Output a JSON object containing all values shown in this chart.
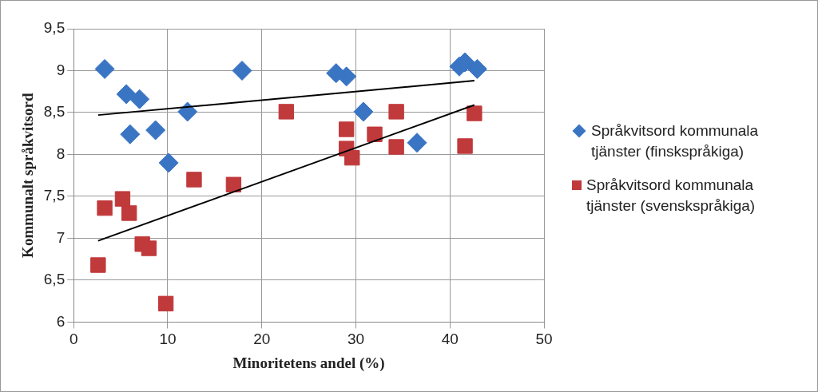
{
  "chart_data": {
    "type": "scatter",
    "xlabel": "Minoritetens andel (%)",
    "ylabel": "Kommunalt språkvitsord",
    "xlim": [
      0,
      50
    ],
    "xticks": [
      0,
      10,
      20,
      30,
      40,
      50
    ],
    "ylim": [
      6,
      9.5
    ],
    "yticks": [
      {
        "value": 6,
        "label": "6"
      },
      {
        "value": 6.5,
        "label": "6,5"
      },
      {
        "value": 7,
        "label": "7"
      },
      {
        "value": 7.5,
        "label": "7,5"
      },
      {
        "value": 8,
        "label": "8"
      },
      {
        "value": 8.5,
        "label": "8,5"
      },
      {
        "value": 9,
        "label": "9"
      },
      {
        "value": 9.5,
        "label": "9,5"
      }
    ],
    "grid": true,
    "legend": "right",
    "series": [
      {
        "name": "Språkvitsord kommunala tjänster (finskspråkiga)",
        "color": "#3a75c4",
        "marker": "diamond",
        "x": [
          3.3,
          5.6,
          7.0,
          6.0,
          8.7,
          12.1,
          10.1,
          17.9,
          27.9,
          29.0,
          30.8,
          36.5,
          41.0,
          41.6,
          42.9
        ],
        "values": [
          9.02,
          8.72,
          8.66,
          8.24,
          8.29,
          8.51,
          7.9,
          9.0,
          8.97,
          8.93,
          8.51,
          8.14,
          9.05,
          9.1,
          9.02
        ]
      },
      {
        "name": "Språkvitsord kommunala tjänster (svenskspråkiga)",
        "color": "#c0393b",
        "marker": "square",
        "x": [
          3.3,
          5.2,
          5.9,
          7.3,
          8.0,
          2.6,
          9.8,
          12.8,
          17.0,
          22.6,
          29.0,
          29.0,
          29.6,
          32.0,
          34.3,
          34.3,
          41.6,
          42.6
        ],
        "values": [
          7.36,
          7.47,
          7.3,
          6.93,
          6.88,
          6.68,
          6.22,
          7.7,
          7.64,
          8.51,
          8.3,
          8.07,
          7.96,
          8.24,
          8.51,
          8.09,
          8.1,
          8.49
        ]
      },
      {
        "type": "line",
        "color": "#000000",
        "marker": "none",
        "x": [
          2.6,
          42.6
        ],
        "values": [
          8.47,
          8.88
        ]
      },
      {
        "type": "line",
        "color": "#000000",
        "marker": "none",
        "x": [
          2.6,
          42.6
        ],
        "values": [
          6.97,
          8.59
        ]
      }
    ]
  }
}
